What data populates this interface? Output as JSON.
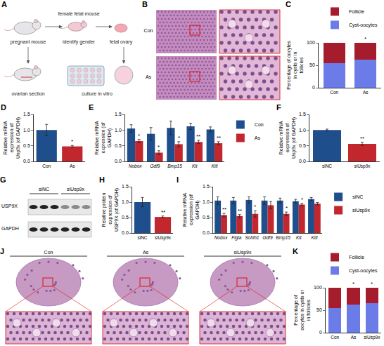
{
  "diagram": {
    "panel": "A",
    "labels": {
      "pregnant": "pregnant mouse",
      "section": "ovarian section",
      "fetal_mouse": "female fetal mouse",
      "gender": "identify gender",
      "ovary": "fetal ovary",
      "culture": "culture in vitro"
    }
  },
  "micrographs_B": {
    "panel": "B",
    "rows": [
      "Con",
      "As"
    ]
  },
  "blot": {
    "panel": "G",
    "groups": [
      "siNC",
      "siUsp9x"
    ],
    "rows": [
      "USP9X",
      "GAPDH"
    ]
  },
  "micrographs_J": {
    "panel": "J",
    "columns": [
      "Con",
      "As",
      "siUsp9x"
    ]
  },
  "chart_data": [
    {
      "panel": "C",
      "type": "bar",
      "stacked": true,
      "categories": [
        "Con",
        "As"
      ],
      "series": [
        {
          "name": "Cyst-oocytes",
          "color": "#6b7be8",
          "values": [
            55,
            62
          ]
        },
        {
          "name": "Follicle",
          "color": "#a51d2d",
          "values": [
            45,
            38
          ]
        }
      ],
      "significance": [
        null,
        "*"
      ],
      "y_label": "Percentage of oocytes in cysts or in follicles",
      "ylim": [
        0,
        100
      ],
      "yticks": [
        0,
        50,
        100
      ],
      "legend": "top right"
    },
    {
      "panel": "D",
      "type": "bar",
      "categories": [
        "Con",
        "As"
      ],
      "colors": [
        "#1f4e8c",
        "#c1272d"
      ],
      "values": [
        1.0,
        0.48
      ],
      "errors": [
        0.18,
        0.03
      ],
      "significance": [
        null,
        "*"
      ],
      "y_label": "Relative mRNA expression of Usp9x (of GAPDH)",
      "ylim": [
        0,
        1.5
      ],
      "yticks": [
        {
          "value": 0,
          "label": "0.0"
        },
        0.5,
        {
          "value": 1,
          "label": "1.0"
        },
        1.5
      ]
    },
    {
      "panel": "E",
      "type": "bar",
      "categories": [
        "Nobox",
        "Gdf9",
        "Bmp15",
        "Kit",
        "Kitl"
      ],
      "series": [
        {
          "name": "Con",
          "color": "#1f4e8c",
          "values": [
            1.05,
            0.88,
            1.07,
            1.12,
            1.02
          ],
          "errors": [
            0.12,
            0.2,
            0.22,
            0.1,
            0.08
          ]
        },
        {
          "name": "As",
          "color": "#c1272d",
          "values": [
            0.65,
            0.28,
            0.55,
            0.62,
            0.58
          ],
          "errors": [
            0.05,
            0.06,
            0.08,
            0.05,
            0.05
          ],
          "significance": [
            "*",
            "*",
            "*",
            "**",
            "**"
          ]
        }
      ],
      "y_label": "Relative mRNA expression (of GAPDH)",
      "ylim": [
        0,
        1.5
      ],
      "yticks": [
        {
          "value": 0,
          "label": "0.0"
        },
        0.5,
        {
          "value": 1,
          "label": "1.0"
        },
        1.5
      ],
      "legend": "right"
    },
    {
      "panel": "F",
      "type": "bar",
      "categories": [
        "siNC",
        "siUsp9x"
      ],
      "colors": [
        "#1f4e8c",
        "#c1272d"
      ],
      "values": [
        1.0,
        0.56
      ],
      "errors": [
        0.03,
        0.05
      ],
      "significance": [
        null,
        "**"
      ],
      "y_label": "Relative mRNA expression of Usp9x (of GAPDH)",
      "ylim": [
        0,
        1.5
      ],
      "yticks": [
        {
          "value": 0,
          "label": "0.0"
        },
        0.5,
        {
          "value": 1,
          "label": "1.0"
        },
        1.5
      ]
    },
    {
      "panel": "H",
      "type": "bar",
      "categories": [
        "siNC",
        "siUsp9x"
      ],
      "colors": [
        "#1f4e8c",
        "#c1272d"
      ],
      "values": [
        1.0,
        0.52
      ],
      "errors": [
        0.15,
        0.03
      ],
      "significance": [
        null,
        "**"
      ],
      "y_label": "Relative protein expression of USP9X (of GAPDH)",
      "ylim": [
        0,
        1.5
      ],
      "yticks": [
        {
          "value": 0,
          "label": "0.0"
        },
        0.5,
        {
          "value": 1,
          "label": "1.0"
        },
        1.5
      ]
    },
    {
      "panel": "I",
      "type": "bar",
      "categories": [
        "Nobox",
        "Figla",
        "Sohlh1",
        "Gdf9",
        "Bmp15",
        "Kit",
        "Kitl"
      ],
      "series": [
        {
          "name": "siNC",
          "color": "#1f4e8c",
          "values": [
            1.05,
            1.05,
            1.07,
            1.05,
            1.05,
            1.03,
            1.1
          ],
          "errors": [
            0.12,
            0.1,
            0.1,
            0.12,
            0.08,
            0.06,
            0.05
          ]
        },
        {
          "name": "siUsp9x",
          "color": "#c1272d",
          "values": [
            0.58,
            0.55,
            0.62,
            0.9,
            0.62,
            0.92,
            0.95
          ],
          "errors": [
            0.06,
            0.05,
            0.1,
            0.12,
            0.06,
            0.04,
            0.04
          ],
          "significance": [
            "**",
            "**",
            "*",
            null,
            "*",
            "*",
            null
          ]
        }
      ],
      "y_label": "Relative mRNA expression (of GAPDH)",
      "ylim": [
        0,
        1.5
      ],
      "yticks": [
        {
          "value": 0,
          "label": "0.0"
        },
        0.5,
        {
          "value": 1,
          "label": "1.0"
        },
        1.5
      ],
      "legend": "right"
    },
    {
      "panel": "K",
      "type": "bar",
      "stacked": true,
      "categories": [
        "Con",
        "As",
        "siUsp9x"
      ],
      "series": [
        {
          "name": "Cyst-oocytes",
          "color": "#6b7be8",
          "values": [
            55,
            63,
            65
          ]
        },
        {
          "name": "Follicle",
          "color": "#a51d2d",
          "values": [
            45,
            37,
            35
          ]
        }
      ],
      "significance": [
        null,
        "*",
        "*"
      ],
      "y_label": "Percentage of oocytes in cysts or in follicles",
      "ylim": [
        0,
        100
      ],
      "yticks": [
        0,
        50,
        100
      ],
      "legend": "top right"
    }
  ]
}
